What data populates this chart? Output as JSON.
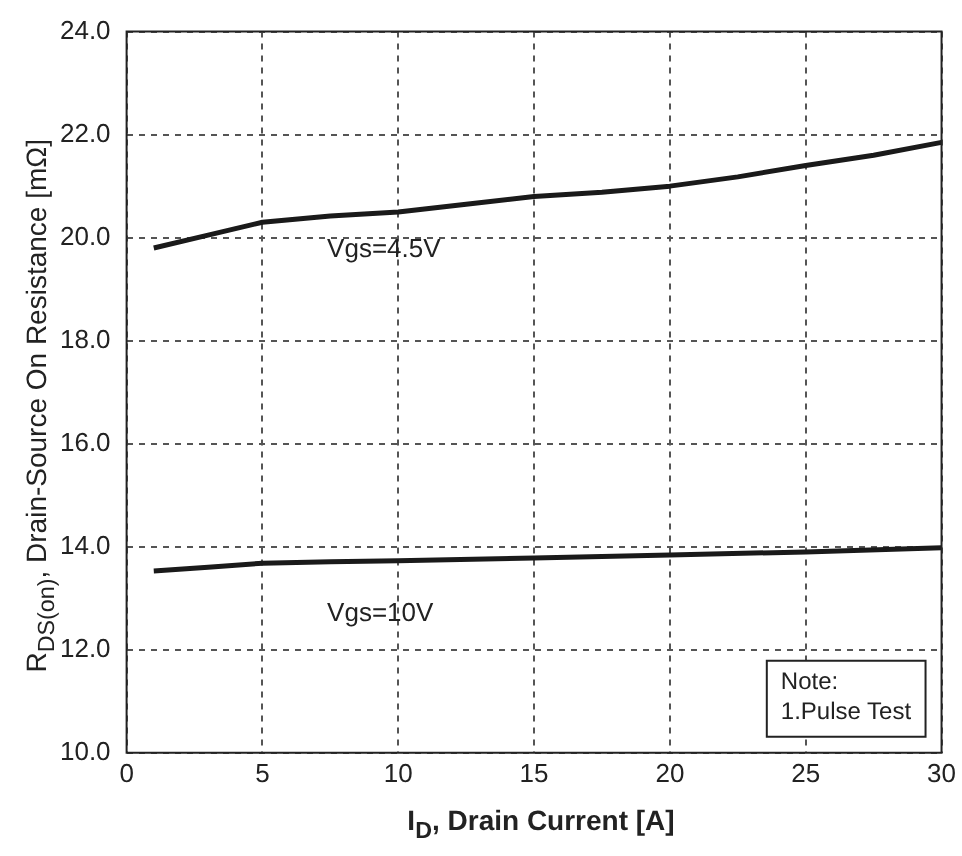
{
  "chart_data": {
    "type": "line",
    "xlabel": "I$_{D}$, Drain Current [A]",
    "ylabel": "R$_{DS(on)}$, Drain-Source On Resistance [mΩ]",
    "series": [
      {
        "color": "#1a1a1a",
        "x": [
          1,
          3,
          5,
          7.5,
          10,
          12.5,
          15,
          17.5,
          20,
          22.5,
          25,
          27.5,
          30
        ],
        "values": [
          19.8,
          20.05,
          20.3,
          20.42,
          20.5,
          20.65,
          20.8,
          20.88,
          21.0,
          21.18,
          21.4,
          21.6,
          21.85
        ]
      },
      {
        "color": "#1a1a1a",
        "x": [
          1,
          3,
          5,
          7.5,
          10,
          15,
          20,
          25,
          30
        ],
        "values": [
          13.53,
          13.6,
          13.68,
          13.71,
          13.73,
          13.78,
          13.84,
          13.9,
          13.98
        ]
      }
    ],
    "xlim": [
      0,
      30
    ],
    "xticks": [
      0,
      5,
      10,
      15,
      20,
      25,
      30
    ],
    "ylim": [
      10,
      24
    ],
    "yticks": [
      {
        "value": 10,
        "label": "10.0"
      },
      {
        "value": 12,
        "label": "12.0"
      },
      {
        "value": 14,
        "label": "14.0"
      },
      {
        "value": 16,
        "label": "16.0"
      },
      {
        "value": 18,
        "label": "18.0"
      },
      {
        "value": 20,
        "label": "20.0"
      },
      {
        "value": 22,
        "label": "22.0"
      },
      {
        "value": 24,
        "label": "24.0"
      }
    ],
    "grid": true,
    "legend": false,
    "marker": "none",
    "line_style": "solid",
    "annotations": [
      "Vgs=4.5V",
      "Vgs=10V",
      "Note:\n1.Pulse Test"
    ]
  }
}
